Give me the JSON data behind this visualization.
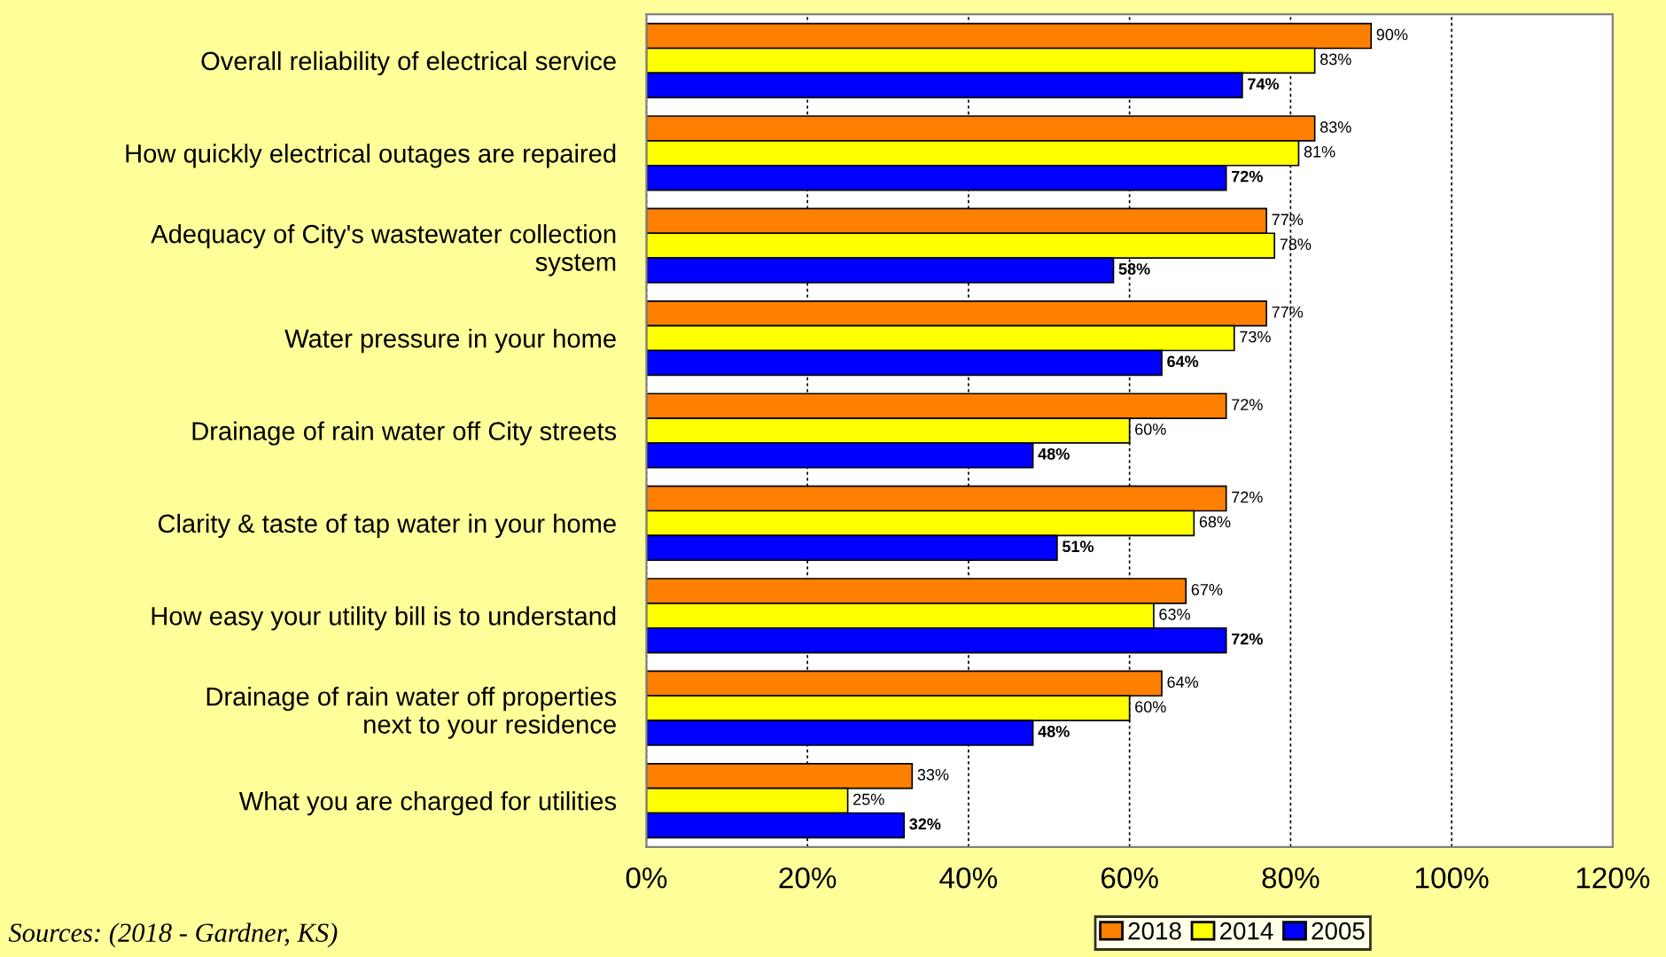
{
  "chart_data": {
    "type": "bar",
    "orientation": "horizontal",
    "categories": [
      "Overall reliability of electrical service",
      "How quickly electrical outages are repaired",
      "Adequacy of City's wastewater collection\nsystem",
      "Water pressure in your home",
      "Drainage of rain water off City streets",
      "Clarity & taste of tap water in your home",
      "How easy your utility bill is to understand",
      "Drainage of rain water off properties\nnext to your residence",
      "What you are charged for utilities"
    ],
    "series": [
      {
        "name": "2018",
        "color": "#ff8000",
        "values": [
          90,
          83,
          77,
          77,
          72,
          72,
          67,
          64,
          33
        ],
        "value_labels": [
          "90%",
          "83%",
          "77%",
          "77%",
          "72%",
          "72%",
          "67%",
          "64%",
          "33%"
        ]
      },
      {
        "name": "2014",
        "color": "#ffff00",
        "values": [
          83,
          81,
          78,
          73,
          60,
          68,
          63,
          60,
          25
        ],
        "value_labels": [
          "83%",
          "81%",
          "78%",
          "73%",
          "60%",
          "68%",
          "63%",
          "60%",
          "25%"
        ]
      },
      {
        "name": "2005",
        "color": "#0000ff",
        "values": [
          74,
          72,
          58,
          64,
          48,
          51,
          72,
          48,
          32
        ],
        "value_labels": [
          "74%",
          "72%",
          "58%",
          "64%",
          "48%",
          "51%",
          "72%",
          "48%",
          "32%"
        ]
      }
    ],
    "xlim": [
      0,
      120
    ],
    "xticks": [
      {
        "value": 0,
        "label": "0%"
      },
      {
        "value": 20,
        "label": "20%"
      },
      {
        "value": 40,
        "label": "40%"
      },
      {
        "value": 60,
        "label": "60%"
      },
      {
        "value": 80,
        "label": "80%"
      },
      {
        "value": 100,
        "label": "100%"
      },
      {
        "value": 120,
        "label": "120%"
      }
    ],
    "grid": "x",
    "legend": "bottom",
    "annotations": [
      "Sources: (2018 - Gardner, KS)"
    ]
  }
}
